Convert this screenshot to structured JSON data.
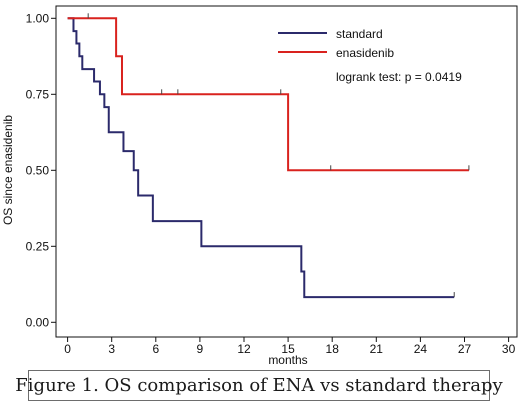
{
  "chart_data": {
    "type": "line",
    "subtype": "step (Kaplan-Meier survival curves)",
    "xlabel": "months",
    "ylabel": "OS since enasidenib",
    "xlim": [
      0,
      30
    ],
    "ylim": [
      0,
      1
    ],
    "x_ticks": [
      "0",
      "3",
      "6",
      "9",
      "12",
      "15",
      "18",
      "21",
      "24",
      "27",
      "30"
    ],
    "y_ticks": [
      "0.00",
      "0.25",
      "0.50",
      "0.75",
      "1.00"
    ],
    "grid": false,
    "legend_position": "top-right",
    "annotation": "logrank test: p = 0.0419",
    "series": [
      {
        "name": "standard",
        "color": "#2b2a6b",
        "steps": [
          [
            0,
            1.0
          ],
          [
            0.4,
            0.958
          ],
          [
            0.6,
            0.917
          ],
          [
            0.8,
            0.875
          ],
          [
            1.0,
            0.833
          ],
          [
            1.8,
            0.792
          ],
          [
            2.2,
            0.75
          ],
          [
            2.5,
            0.708
          ],
          [
            2.8,
            0.625
          ],
          [
            3.8,
            0.563
          ],
          [
            4.5,
            0.5
          ],
          [
            4.8,
            0.417
          ],
          [
            5.8,
            0.333
          ],
          [
            9.1,
            0.25
          ],
          [
            15.9,
            0.167
          ],
          [
            16.1,
            0.083
          ],
          [
            26.3,
            0.083
          ]
        ],
        "censor_x": [
          26.3
        ]
      },
      {
        "name": "enasidenib",
        "color": "#d9221e",
        "steps": [
          [
            0,
            1.0
          ],
          [
            3.3,
            0.875
          ],
          [
            3.7,
            0.75
          ],
          [
            15.0,
            0.5
          ],
          [
            27.3,
            0.5
          ]
        ],
        "censor_x": [
          1.4,
          6.4,
          7.5,
          14.5,
          17.9,
          27.3
        ]
      }
    ]
  },
  "caption": "Figure 1. OS comparison of ENA vs standard therapy"
}
